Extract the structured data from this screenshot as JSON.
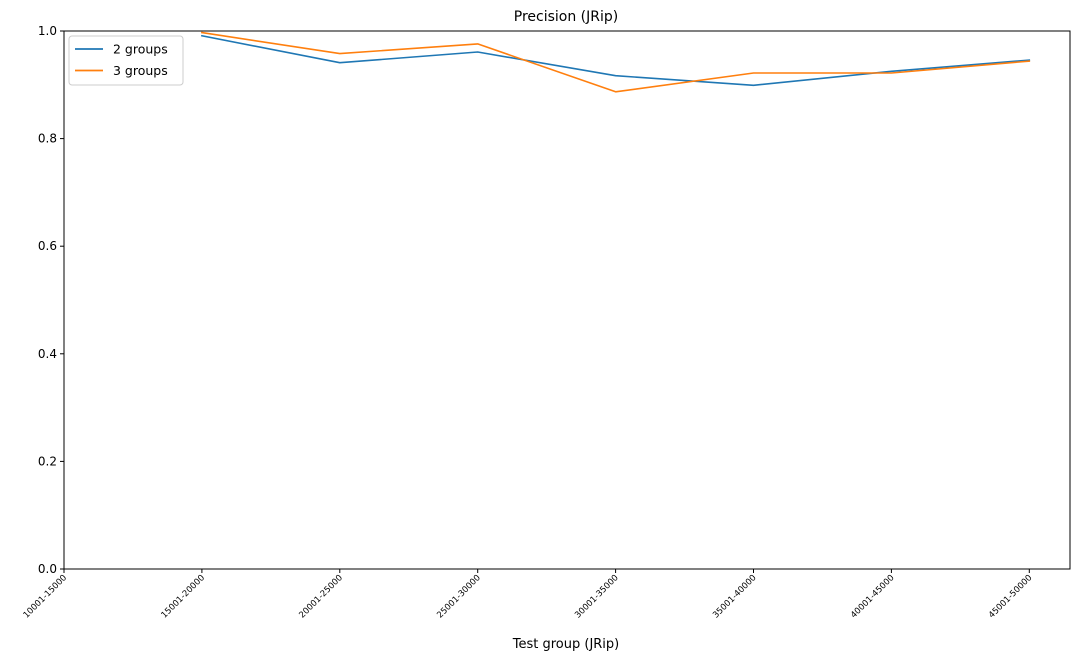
{
  "chart_data": {
    "type": "line",
    "title": "Precision (JRip)",
    "xlabel": "Test group (JRip)",
    "ylabel": "",
    "ylim": [
      0,
      1.0
    ],
    "yticks": [
      "0.0",
      "0.2",
      "0.4",
      "0.6",
      "0.8",
      "1.0"
    ],
    "categories": [
      "10001-15000",
      "15001-20000",
      "20001-25000",
      "25001-30000",
      "30001-35000",
      "35001-40000",
      "40001-45000",
      "45001-50000"
    ],
    "series": [
      {
        "name": "2 groups",
        "color": "#1f77b4",
        "values": [
          null,
          0.991,
          0.941,
          0.961,
          0.917,
          0.899,
          0.925,
          0.946
        ]
      },
      {
        "name": "3 groups",
        "color": "#ff7f0e",
        "values": [
          null,
          0.997,
          0.958,
          0.976,
          0.887,
          0.922,
          0.922,
          0.944
        ]
      }
    ],
    "legend_position": "top-left",
    "grid": false
  }
}
